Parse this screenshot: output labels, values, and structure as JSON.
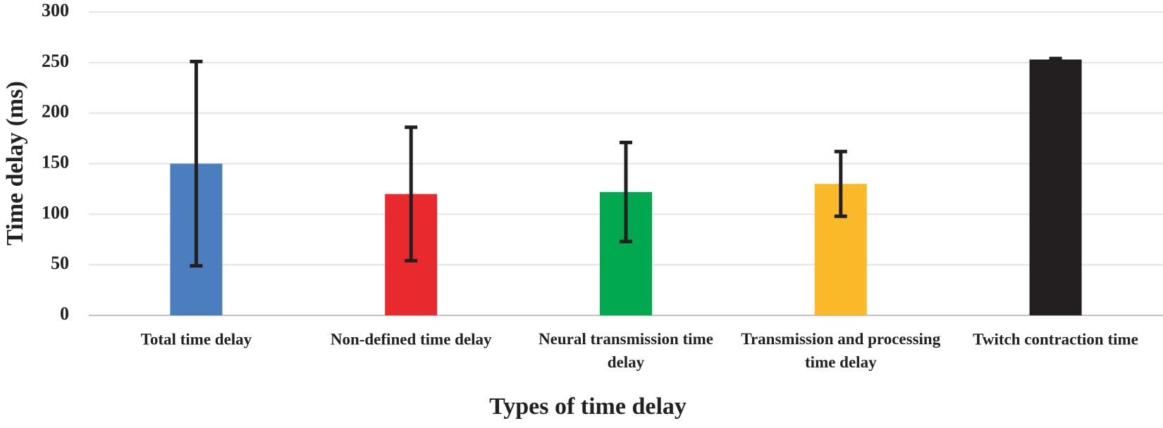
{
  "chart_data": {
    "type": "bar",
    "x_label": "Types of time delay",
    "y_label": "Time delay (ms)",
    "categories": [
      "Total time delay",
      "Non-defined time delay",
      "Neural transmission time delay",
      "Transmission and processing time delay",
      "Twitch contraction time"
    ],
    "values": [
      150,
      120,
      122,
      130,
      253
    ],
    "errors": [
      101,
      66,
      49,
      32,
      1
    ],
    "colors": [
      "#4a7ebf",
      "#e8292e",
      "#00a84f",
      "#f9b928",
      "#231f20"
    ],
    "error_color": "#231f20",
    "ylim": [
      0,
      300
    ],
    "yticks": [
      0,
      50,
      100,
      150,
      200,
      250,
      300
    ],
    "grid": true
  }
}
